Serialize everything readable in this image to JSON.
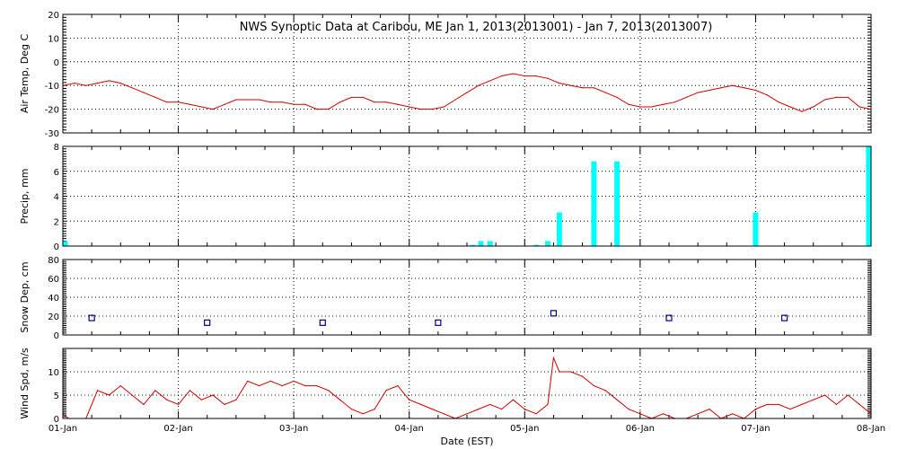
{
  "chart_data": {
    "type": "multi-panel",
    "title": "NWS Synoptic Data at Caribou, ME   Jan  1, 2013(2013001) - Jan  7, 2013(2013007)",
    "xlabel": "Date (EST)",
    "x_ticks": [
      "01-Jan",
      "02-Jan",
      "03-Jan",
      "04-Jan",
      "05-Jan",
      "06-Jan",
      "07-Jan",
      "08-Jan"
    ],
    "xlim_days": [
      0,
      7
    ],
    "grid": true,
    "colors": {
      "temp": "#cc0000",
      "precip": "#00ffff",
      "snow": "#000080",
      "wind": "#cc0000",
      "grid": "#000000"
    },
    "panels": [
      {
        "id": "air-temp",
        "type": "line",
        "ylabel": "Air Temp, Deg C",
        "ylim": [
          -30,
          20
        ],
        "yticks": [
          20,
          10,
          0,
          -10,
          -20,
          -30
        ],
        "x": [
          0,
          0.1,
          0.2,
          0.3,
          0.4,
          0.5,
          0.6,
          0.7,
          0.8,
          0.9,
          1.0,
          1.1,
          1.2,
          1.3,
          1.4,
          1.5,
          1.6,
          1.7,
          1.8,
          1.9,
          2.0,
          2.1,
          2.2,
          2.3,
          2.4,
          2.5,
          2.6,
          2.7,
          2.8,
          2.9,
          3.0,
          3.1,
          3.2,
          3.3,
          3.4,
          3.5,
          3.6,
          3.7,
          3.8,
          3.9,
          4.0,
          4.1,
          4.2,
          4.3,
          4.4,
          4.5,
          4.6,
          4.7,
          4.8,
          4.9,
          5.0,
          5.1,
          5.2,
          5.3,
          5.4,
          5.5,
          5.6,
          5.7,
          5.8,
          5.9,
          6.0,
          6.1,
          6.2,
          6.3,
          6.4,
          6.5,
          6.6,
          6.7,
          6.8,
          6.9,
          7.0
        ],
        "y": [
          -10,
          -9,
          -10,
          -9,
          -8,
          -9,
          -11,
          -13,
          -15,
          -17,
          -17,
          -18,
          -19,
          -20,
          -18,
          -16,
          -16,
          -16,
          -17,
          -17,
          -18,
          -18,
          -20,
          -20,
          -17,
          -15,
          -15,
          -17,
          -17,
          -18,
          -19,
          -20,
          -20,
          -19,
          -16,
          -13,
          -10,
          -8,
          -6,
          -5,
          -6,
          -6,
          -7,
          -9,
          -10,
          -11,
          -11,
          -13,
          -15,
          -18,
          -19,
          -19,
          -18,
          -17,
          -15,
          -13,
          -12,
          -11,
          -10,
          -11,
          -12,
          -14,
          -17,
          -19,
          -21,
          -19,
          -16,
          -15,
          -15,
          -19,
          -20
        ]
      },
      {
        "id": "precip",
        "type": "bar",
        "ylabel": "Precip, mm",
        "ylim": [
          0,
          8
        ],
        "yticks": [
          8,
          6,
          4,
          2,
          0
        ],
        "x": [
          0.02,
          3.55,
          3.62,
          3.7,
          4.1,
          4.2,
          4.3,
          4.6,
          4.8,
          6.0,
          6.98
        ],
        "values": [
          0.4,
          0.1,
          0.4,
          0.4,
          0.1,
          0.4,
          2.7,
          6.8,
          6.8,
          2.7,
          8.0
        ]
      },
      {
        "id": "snow-depth",
        "type": "scatter",
        "ylabel": "Snow Dep, cm",
        "ylim": [
          0,
          80
        ],
        "yticks": [
          80,
          60,
          40,
          20,
          0
        ],
        "x": [
          0.25,
          1.25,
          2.25,
          3.25,
          4.25,
          5.25,
          6.25
        ],
        "y": [
          18,
          13,
          13,
          13,
          23,
          18,
          18
        ]
      },
      {
        "id": "wind-speed",
        "type": "line",
        "ylabel": "Wind Spd, m/s",
        "ylim": [
          0,
          15
        ],
        "yticks": [
          10,
          5,
          0
        ],
        "x": [
          0,
          0.05,
          0.1,
          0.2,
          0.3,
          0.4,
          0.5,
          0.6,
          0.7,
          0.8,
          0.9,
          1.0,
          1.1,
          1.2,
          1.3,
          1.4,
          1.5,
          1.6,
          1.7,
          1.8,
          1.9,
          2.0,
          2.1,
          2.2,
          2.3,
          2.4,
          2.5,
          2.6,
          2.7,
          2.8,
          2.9,
          3.0,
          3.1,
          3.2,
          3.3,
          3.4,
          3.5,
          3.6,
          3.7,
          3.8,
          3.9,
          4.0,
          4.1,
          4.2,
          4.25,
          4.3,
          4.4,
          4.5,
          4.6,
          4.7,
          4.8,
          4.9,
          5.0,
          5.1,
          5.2,
          5.3,
          5.4,
          5.5,
          5.6,
          5.7,
          5.8,
          5.9,
          6.0,
          6.1,
          6.2,
          6.3,
          6.4,
          6.5,
          6.6,
          6.7,
          6.8,
          6.9,
          7.0
        ],
        "y": [
          1,
          0,
          0,
          0,
          6,
          5,
          7,
          5,
          3,
          6,
          4,
          3,
          6,
          4,
          5,
          3,
          4,
          8,
          7,
          8,
          7,
          8,
          7,
          7,
          6,
          4,
          2,
          1,
          2,
          6,
          7,
          4,
          3,
          2,
          1,
          0,
          1,
          2,
          3,
          2,
          4,
          2,
          1,
          3,
          13,
          10,
          10,
          9,
          7,
          6,
          4,
          2,
          1,
          0,
          1,
          0,
          0,
          1,
          2,
          0,
          1,
          0,
          2,
          3,
          3,
          2,
          3,
          4,
          5,
          3,
          5,
          3,
          1
        ]
      }
    ]
  }
}
